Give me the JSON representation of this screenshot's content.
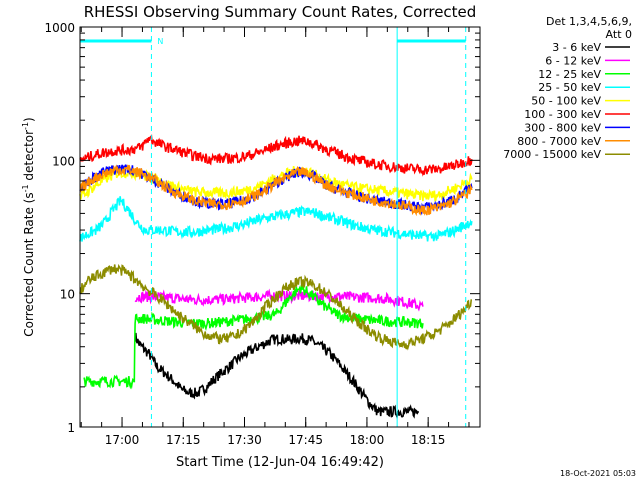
{
  "chart_data": {
    "type": "line",
    "title": "RHESSI Observing Summary Count Rates, Corrected",
    "xlabel": "Start Time (12-Jun-04 16:49:42)",
    "ylabel_main": "Corrected Count Rate (s",
    "ylabel_sup1": "-1",
    "ylabel_mid": " detector",
    "ylabel_sup2": "-1",
    "ylabel_end": ")",
    "yscale": "log",
    "ylim": [
      1,
      1000
    ],
    "yticks": [
      "1",
      "10",
      "100",
      "1000"
    ],
    "x_unit": "minutes after 16:49:42",
    "xlim": [
      0,
      98
    ],
    "xticks": [
      {
        "label": "17:00",
        "t": 10.3
      },
      {
        "label": "17:15",
        "t": 25.3
      },
      {
        "label": "17:30",
        "t": 40.3
      },
      {
        "label": "17:45",
        "t": 55.3
      },
      {
        "label": "18:00",
        "t": 70.3
      },
      {
        "label": "18:15",
        "t": 85.3
      }
    ],
    "detectors_line1": "Det 1,3,4,5,6,9,",
    "detectors_line2": "Att 0",
    "night_marks": [
      0,
      17.5,
      77.7,
      94.5
    ],
    "saa_intervals": [
      [
        0,
        17.5
      ],
      [
        77.7,
        94.5
      ]
    ],
    "saa_marker_label": "N",
    "series": [
      {
        "name": "3 - 6 keV",
        "color": "#000000",
        "x": [
          13.5,
          14.5,
          17,
          19,
          21,
          23,
          25,
          27,
          29,
          31,
          33,
          35,
          37,
          39,
          41,
          43,
          45,
          47,
          49,
          51,
          53,
          55,
          57,
          59,
          61,
          63,
          65,
          67,
          69,
          71,
          73,
          75,
          77,
          79,
          81,
          83
        ],
        "y": [
          4.8,
          4.2,
          3.5,
          2.8,
          2.5,
          2.2,
          1.9,
          1.8,
          1.8,
          2.0,
          2.3,
          2.6,
          2.9,
          3.3,
          3.6,
          3.9,
          4.2,
          4.5,
          4.6,
          4.5,
          4.6,
          4.6,
          4.4,
          4.0,
          3.6,
          3.1,
          2.6,
          2.2,
          1.8,
          1.5,
          1.3,
          1.3,
          1.3,
          1.3,
          1.3,
          1.3
        ]
      },
      {
        "name": "6 - 12 keV",
        "color": "#ff00ff",
        "x": [
          13.5,
          16,
          20,
          24,
          28,
          32,
          36,
          40,
          44,
          48,
          52,
          56,
          60,
          64,
          68,
          72,
          76,
          80,
          84
        ],
        "y": [
          9.5,
          9.5,
          9.4,
          9.2,
          9.0,
          9.0,
          9.1,
          9.3,
          9.5,
          9.6,
          9.6,
          9.6,
          9.6,
          9.5,
          9.4,
          9.3,
          9.1,
          8.6,
          8.0
        ]
      },
      {
        "name": "12 - 25 keV",
        "color": "#00ff00",
        "x": [
          1,
          3,
          5,
          7,
          9,
          11,
          13.3,
          13.5,
          16,
          20,
          24,
          28,
          32,
          36,
          40,
          44,
          48,
          50,
          52,
          54,
          56,
          58,
          60,
          62,
          64,
          68,
          72,
          76,
          80,
          84
        ],
        "y": [
          2.2,
          2.2,
          2.2,
          2.2,
          2.2,
          2.2,
          2.2,
          6.5,
          6.5,
          6.3,
          6.1,
          6.0,
          6.0,
          6.2,
          6.4,
          6.6,
          7.0,
          8.3,
          9.8,
          11.0,
          10.2,
          9.0,
          8.0,
          7.3,
          6.8,
          6.5,
          6.3,
          6.2,
          6.1,
          6.0
        ]
      },
      {
        "name": "25 - 50 keV",
        "color": "#00ffff",
        "x": [
          0,
          2,
          4,
          6,
          8,
          10,
          12,
          14,
          16,
          18,
          20,
          24,
          28,
          32,
          36,
          40,
          44,
          48,
          52,
          54,
          56,
          58,
          60,
          64,
          68,
          72,
          76,
          80,
          84,
          88,
          92,
          96
        ],
        "y": [
          26,
          28,
          30,
          34,
          42,
          50,
          42,
          34,
          30,
          30,
          30,
          29,
          29,
          30,
          31,
          33,
          36,
          38,
          40,
          41,
          41,
          40,
          38,
          35,
          32,
          30,
          29,
          28,
          27,
          27,
          30,
          35
        ]
      },
      {
        "name": "50 - 100 keV",
        "color": "#ffff00",
        "x": [
          0,
          3,
          6,
          9,
          12,
          15,
          18,
          21,
          24,
          28,
          32,
          36,
          40,
          44,
          48,
          52,
          54,
          56,
          58,
          60,
          64,
          68,
          72,
          76,
          80,
          84,
          88,
          92,
          96
        ],
        "y": [
          52,
          62,
          72,
          80,
          82,
          78,
          73,
          67,
          62,
          58,
          57,
          57,
          59,
          64,
          74,
          82,
          85,
          82,
          77,
          72,
          66,
          62,
          60,
          58,
          56,
          54,
          55,
          62,
          72
        ]
      },
      {
        "name": "100 - 300 keV",
        "color": "#ff0000",
        "x": [
          0,
          3,
          6,
          9,
          12,
          15,
          17,
          18,
          20,
          24,
          28,
          32,
          36,
          40,
          44,
          48,
          52,
          54,
          56,
          58,
          60,
          64,
          68,
          72,
          76,
          80,
          84,
          88,
          92,
          96
        ],
        "y": [
          100,
          108,
          115,
          118,
          120,
          125,
          148,
          140,
          130,
          118,
          108,
          103,
          103,
          106,
          115,
          128,
          138,
          140,
          138,
          130,
          122,
          110,
          100,
          94,
          90,
          87,
          85,
          86,
          92,
          102
        ]
      },
      {
        "name": "300 - 800 keV",
        "color": "#0000ff",
        "x": [
          0,
          3,
          6,
          9,
          12,
          15,
          18,
          21,
          24,
          28,
          32,
          36,
          40,
          44,
          48,
          52,
          54,
          56,
          58,
          60,
          64,
          68,
          72,
          76,
          80,
          84,
          88,
          92,
          96
        ],
        "y": [
          63,
          73,
          82,
          86,
          86,
          80,
          72,
          63,
          56,
          50,
          47,
          47,
          50,
          56,
          68,
          78,
          82,
          79,
          73,
          66,
          59,
          54,
          50,
          48,
          46,
          44,
          46,
          52,
          62
        ]
      },
      {
        "name": "800 - 7000 keV",
        "color": "#ff8c00",
        "x": [
          0,
          3,
          6,
          9,
          12,
          15,
          18,
          21,
          24,
          28,
          32,
          36,
          40,
          44,
          48,
          52,
          54,
          56,
          58,
          60,
          64,
          68,
          72,
          76,
          80,
          84,
          88,
          92,
          96
        ],
        "y": [
          60,
          72,
          80,
          85,
          85,
          80,
          72,
          63,
          56,
          50,
          47,
          47,
          50,
          56,
          68,
          78,
          82,
          79,
          73,
          66,
          59,
          54,
          50,
          48,
          45,
          42,
          44,
          50,
          60
        ]
      },
      {
        "name": "7000 - 15000 keV",
        "color": "#8c8c00",
        "x": [
          0,
          2,
          4,
          6,
          8,
          10,
          12,
          14,
          16,
          18,
          20,
          22,
          24,
          26,
          28,
          30,
          32,
          34,
          36,
          38,
          40,
          42,
          44,
          46,
          48,
          50,
          52,
          54,
          56,
          58,
          60,
          62,
          64,
          66,
          68,
          70,
          72,
          74,
          76,
          78,
          80,
          82,
          84,
          86,
          88,
          90,
          92,
          94,
          96
        ],
        "y": [
          10.5,
          12.5,
          13.5,
          14.5,
          15.5,
          15.0,
          14.0,
          12.5,
          11.0,
          10.0,
          9.0,
          8.0,
          7.0,
          6.3,
          5.7,
          5.1,
          4.8,
          4.6,
          4.6,
          4.8,
          5.3,
          6.0,
          7.0,
          8.3,
          9.5,
          10.8,
          11.8,
          12.2,
          12.0,
          11.3,
          10.3,
          9.2,
          8.0,
          7.0,
          6.2,
          5.5,
          5.0,
          4.6,
          4.4,
          4.2,
          4.2,
          4.4,
          4.6,
          4.9,
          5.3,
          5.8,
          6.6,
          7.5,
          9.0
        ]
      }
    ]
  },
  "footer": {
    "timestamp": "18-Oct-2021 05:03"
  }
}
